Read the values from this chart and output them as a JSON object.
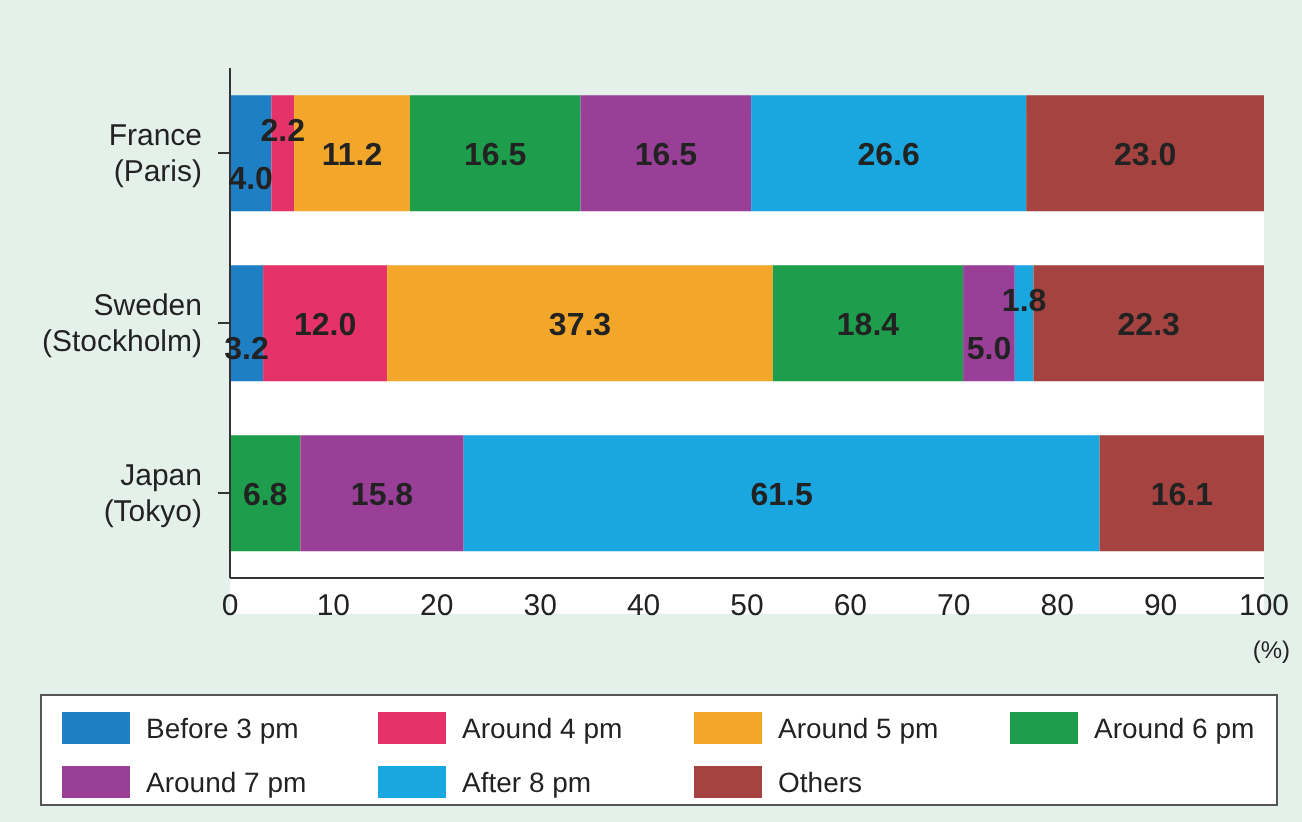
{
  "chart_data": {
    "type": "bar",
    "orientation": "horizontal",
    "stacked": true,
    "categories": [
      "France (Paris)",
      "Sweden (Stockholm)",
      "Japan (Tokyo)"
    ],
    "xlabel": "(%)",
    "xlim": [
      0,
      100
    ],
    "xticks": [
      0,
      10,
      20,
      30,
      40,
      50,
      60,
      70,
      80,
      90,
      100
    ],
    "grid": false,
    "legend": "bottom",
    "series": [
      {
        "name": "Before 3 pm",
        "color": "#1f7fc4",
        "values": [
          4.0,
          3.2,
          null
        ],
        "value_labels": [
          "4.0",
          "3.2",
          null
        ]
      },
      {
        "name": "Around 4 pm",
        "color": "#e5336a",
        "values": [
          2.2,
          12.0,
          null
        ],
        "value_labels": [
          "2.2",
          "12.0",
          null
        ]
      },
      {
        "name": "Around 5 pm",
        "color": "#f3a72a",
        "values": [
          11.2,
          37.3,
          null
        ],
        "value_labels": [
          "11.2",
          "37.3",
          null
        ]
      },
      {
        "name": "Around 6 pm",
        "color": "#1e9d4c",
        "values": [
          16.5,
          18.4,
          6.8
        ],
        "value_labels": [
          "16.5",
          "18.4",
          "6.8"
        ]
      },
      {
        "name": "Around 7 pm",
        "color": "#9a3f98",
        "values": [
          16.5,
          5.0,
          15.8
        ],
        "value_labels": [
          "16.5",
          "5.0",
          "15.8"
        ]
      },
      {
        "name": "After 8 pm",
        "color": "#1aa7df",
        "values": [
          26.6,
          1.8,
          61.5
        ],
        "value_labels": [
          "26.6",
          "1.8",
          "61.5"
        ]
      },
      {
        "name": "Others",
        "color": "#a4433f",
        "values": [
          23.0,
          22.3,
          16.1
        ],
        "value_labels": [
          "23.0",
          "22.3",
          "16.1"
        ]
      }
    ]
  }
}
